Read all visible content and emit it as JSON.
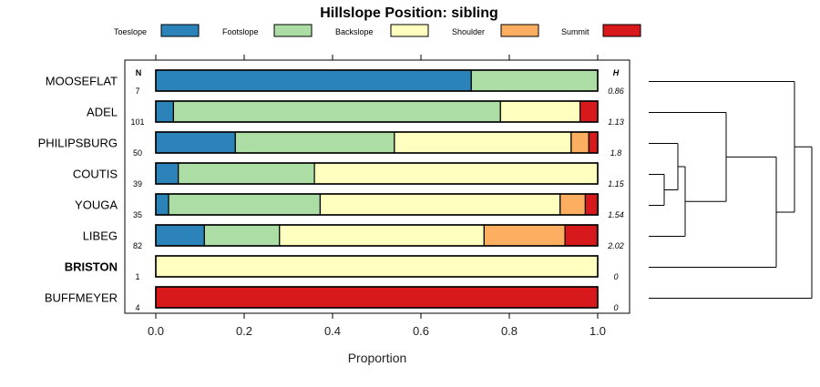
{
  "chart_data": {
    "type": "bar",
    "orientation": "horizontal",
    "stacked": true,
    "title": "Hillslope Position: sibling",
    "xlabel": "Proportion",
    "xlim": [
      0,
      1
    ],
    "xticks": [
      "0.0",
      "0.2",
      "0.4",
      "0.6",
      "0.8",
      "1.0"
    ],
    "n_header": "N",
    "h_header": "H",
    "legend_position": "top",
    "series": [
      {
        "name": "Toeslope",
        "color": "#2b83ba"
      },
      {
        "name": "Footslope",
        "color": "#abdda4"
      },
      {
        "name": "Backslope",
        "color": "#ffffbf"
      },
      {
        "name": "Shoulder",
        "color": "#fdae61"
      },
      {
        "name": "Summit",
        "color": "#d7191c"
      }
    ],
    "rows": [
      {
        "label": "MOOSEFLAT",
        "bold": false,
        "n": "7",
        "h": "0.86",
        "values": [
          0.714,
          0.286,
          0,
          0,
          0
        ]
      },
      {
        "label": "ADEL",
        "bold": false,
        "n": "101",
        "h": "1.13",
        "values": [
          0.04,
          0.74,
          0.18,
          0,
          0.04
        ]
      },
      {
        "label": "PHILIPSBURG",
        "bold": false,
        "n": "50",
        "h": "1.8",
        "values": [
          0.18,
          0.36,
          0.4,
          0.04,
          0.02
        ]
      },
      {
        "label": "COUTIS",
        "bold": false,
        "n": "39",
        "h": "1.15",
        "values": [
          0.051,
          0.308,
          0.641,
          0,
          0
        ]
      },
      {
        "label": "YOUGA",
        "bold": false,
        "n": "35",
        "h": "1.54",
        "values": [
          0.029,
          0.343,
          0.543,
          0.057,
          0.029
        ]
      },
      {
        "label": "LIBEG",
        "bold": false,
        "n": "82",
        "h": "2.02",
        "values": [
          0.11,
          0.17,
          0.463,
          0.183,
          0.073
        ]
      },
      {
        "label": "BRISTON",
        "bold": true,
        "n": "1",
        "h": "0",
        "values": [
          0,
          0,
          1,
          0,
          0
        ]
      },
      {
        "label": "BUFFMEYER",
        "bold": false,
        "n": "4",
        "h": "0",
        "values": [
          0,
          0,
          0,
          0,
          1
        ]
      }
    ]
  }
}
